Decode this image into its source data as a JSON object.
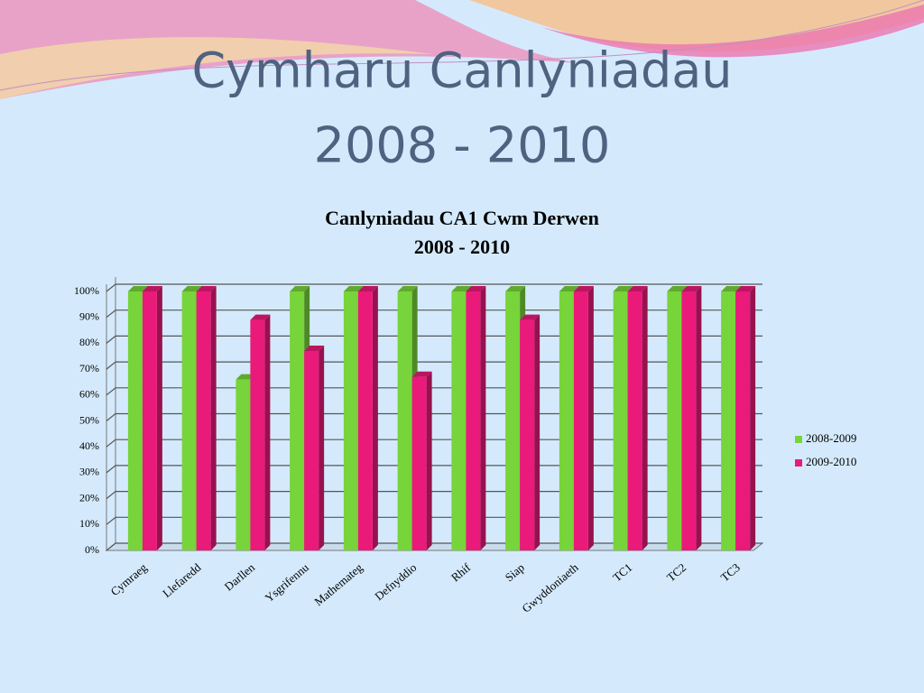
{
  "slide_title": [
    "Cymharu Canlyniadau",
    "2008 - 2010"
  ],
  "chart_data": {
    "type": "bar3d",
    "title": [
      "Canlyniadau CA1 Cwm Derwen",
      "2008 - 2010"
    ],
    "categories": [
      "Cymraeg",
      "Llefaredd",
      "Darllen",
      "Ysgrifennu",
      "Mathemateg",
      "Defnyddio",
      "Rhif",
      "Siap",
      "Gwyddoniaeth",
      "TC1",
      "TC2",
      "TC3"
    ],
    "series": [
      {
        "name": "2008-2009",
        "color": "#77d43a",
        "values": [
          100,
          100,
          66,
          100,
          100,
          100,
          100,
          100,
          100,
          100,
          100,
          100
        ]
      },
      {
        "name": "2009-2010",
        "color": "#ea1a7a",
        "values": [
          100,
          100,
          89,
          77,
          100,
          67,
          100,
          89,
          100,
          100,
          100,
          100
        ]
      }
    ],
    "ylim": [
      0,
      100
    ],
    "yticks": [
      {
        "value": 0,
        "label": "0%"
      },
      {
        "value": 10,
        "label": "10%"
      },
      {
        "value": 20,
        "label": "20%"
      },
      {
        "value": 30,
        "label": "30%"
      },
      {
        "value": 40,
        "label": "40%"
      },
      {
        "value": 50,
        "label": "50%"
      },
      {
        "value": 60,
        "label": "60%"
      },
      {
        "value": 70,
        "label": "70%"
      },
      {
        "value": 80,
        "label": "80%"
      },
      {
        "value": 90,
        "label": "90%"
      },
      {
        "value": 100,
        "label": "100%"
      }
    ],
    "grid": true,
    "legend": "right"
  }
}
